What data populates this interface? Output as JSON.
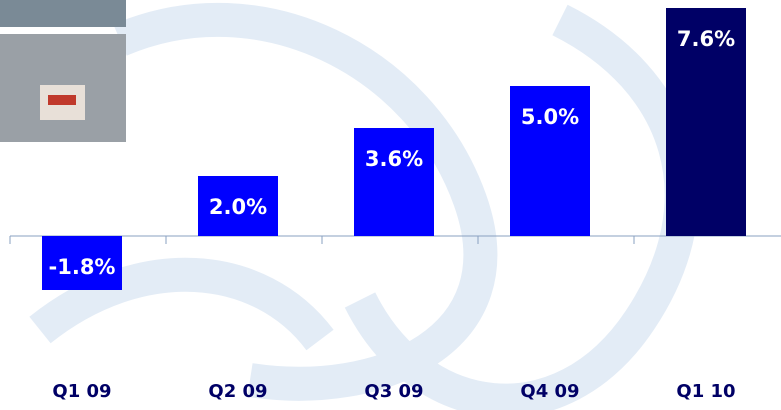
{
  "chart_data": {
    "type": "bar",
    "categories": [
      "Q1 09",
      "Q2 09",
      "Q3 09",
      "Q4 09",
      "Q1 10"
    ],
    "values": [
      -1.8,
      2.0,
      3.6,
      5.0,
      7.6
    ],
    "value_labels": [
      "-1.8%",
      "2.0%",
      "3.6%",
      "5.0%",
      "7.6%"
    ],
    "colors": [
      "#0000ff",
      "#0000ff",
      "#0000ff",
      "#0000ff",
      "#000066"
    ]
  }
}
